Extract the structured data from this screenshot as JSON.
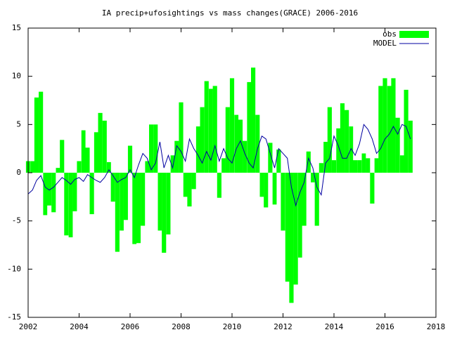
{
  "chart_data": {
    "type": "bar_line",
    "title": "IA precip+ufosightings vs mass changes(GRACE) 2006-2016",
    "x": [
      2002.0,
      2002.17,
      2002.33,
      2002.5,
      2002.67,
      2002.83,
      2003.0,
      2003.17,
      2003.33,
      2003.5,
      2003.67,
      2003.83,
      2004.0,
      2004.17,
      2004.33,
      2004.5,
      2004.67,
      2004.83,
      2005.0,
      2005.17,
      2005.33,
      2005.5,
      2005.67,
      2005.83,
      2006.0,
      2006.17,
      2006.33,
      2006.5,
      2006.67,
      2006.83,
      2007.0,
      2007.17,
      2007.33,
      2007.5,
      2007.67,
      2007.83,
      2008.0,
      2008.17,
      2008.33,
      2008.5,
      2008.67,
      2008.83,
      2009.0,
      2009.17,
      2009.33,
      2009.5,
      2009.67,
      2009.83,
      2010.0,
      2010.17,
      2010.33,
      2010.5,
      2010.67,
      2010.83,
      2011.0,
      2011.17,
      2011.33,
      2011.5,
      2011.67,
      2011.83,
      2012.0,
      2012.17,
      2012.33,
      2012.5,
      2012.67,
      2012.83,
      2013.0,
      2013.17,
      2013.33,
      2013.5,
      2013.67,
      2013.83,
      2014.0,
      2014.17,
      2014.33,
      2014.5,
      2014.67,
      2014.83,
      2015.0,
      2015.17,
      2015.33,
      2015.5,
      2015.67,
      2015.83,
      2016.0,
      2016.17,
      2016.33,
      2016.5,
      2016.67,
      2016.83,
      2017.0
    ],
    "series": [
      {
        "name": "obs",
        "color": "#00ff00",
        "style": "boxes",
        "values": [
          1.2,
          1.2,
          7.8,
          8.4,
          -4.4,
          -3.4,
          -4.1,
          0.5,
          3.4,
          -6.5,
          -6.7,
          -4.0,
          1.2,
          4.4,
          2.6,
          -4.3,
          4.2,
          6.2,
          5.4,
          1.1,
          -3.0,
          -8.2,
          -6.0,
          -4.9,
          2.8,
          -7.4,
          -7.3,
          -5.5,
          1.2,
          5.0,
          5.0,
          -6.0,
          -8.3,
          -6.4,
          1.8,
          3.3,
          7.3,
          -2.5,
          -3.5,
          -1.7,
          4.8,
          6.8,
          9.5,
          8.7,
          9.0,
          -2.6,
          1.5,
          6.8,
          9.8,
          6.0,
          5.5,
          3.3,
          9.4,
          10.9,
          6.0,
          -2.5,
          -3.6,
          3.1,
          -3.3,
          2.4,
          -6.0,
          -11.3,
          -13.5,
          -11.6,
          -8.8,
          -5.5,
          2.2,
          -1.0,
          -5.5,
          1.0,
          3.2,
          6.8,
          1.3,
          4.6,
          7.2,
          6.5,
          4.8,
          1.3,
          1.3,
          2.0,
          1.5,
          -3.2,
          1.5,
          9.0,
          9.8,
          9.0,
          9.8,
          5.7,
          1.8,
          8.6,
          5.4
        ]
      },
      {
        "name": "MODEL",
        "color": "#0000a0",
        "style": "line",
        "values": [
          -2.2,
          -1.8,
          -0.8,
          -0.3,
          -1.5,
          -1.8,
          -1.5,
          -1.0,
          -0.5,
          -0.8,
          -1.2,
          -0.7,
          -0.5,
          -0.9,
          -0.2,
          -0.5,
          -0.8,
          -1.0,
          -0.5,
          0.3,
          -0.3,
          -1.0,
          -0.7,
          -0.5,
          0.3,
          -0.5,
          0.8,
          2.0,
          1.5,
          0.3,
          1.0,
          3.2,
          0.5,
          1.8,
          0.5,
          2.8,
          2.2,
          1.2,
          3.5,
          2.5,
          1.8,
          1.0,
          2.2,
          1.3,
          2.8,
          1.2,
          2.5,
          1.5,
          1.0,
          2.5,
          3.3,
          2.0,
          1.0,
          0.5,
          2.5,
          3.8,
          3.5,
          2.0,
          0.5,
          2.5,
          2.0,
          1.5,
          -1.5,
          -3.4,
          -2.0,
          -1.0,
          1.5,
          0.5,
          -1.5,
          -2.3,
          1.0,
          1.5,
          3.8,
          2.8,
          1.5,
          1.5,
          2.5,
          1.8,
          3.0,
          5.0,
          4.5,
          3.5,
          2.0,
          2.5,
          3.5,
          4.0,
          4.8,
          4.0,
          5.0,
          4.8,
          3.5
        ]
      }
    ],
    "xlim": [
      2002,
      2018
    ],
    "xticks": [
      2002,
      2004,
      2006,
      2008,
      2010,
      2012,
      2014,
      2016,
      2018
    ],
    "ylim": [
      -15,
      15
    ],
    "yticks": [
      -15,
      -10,
      -5,
      0,
      5,
      10,
      15
    ],
    "legend": "top-right"
  }
}
